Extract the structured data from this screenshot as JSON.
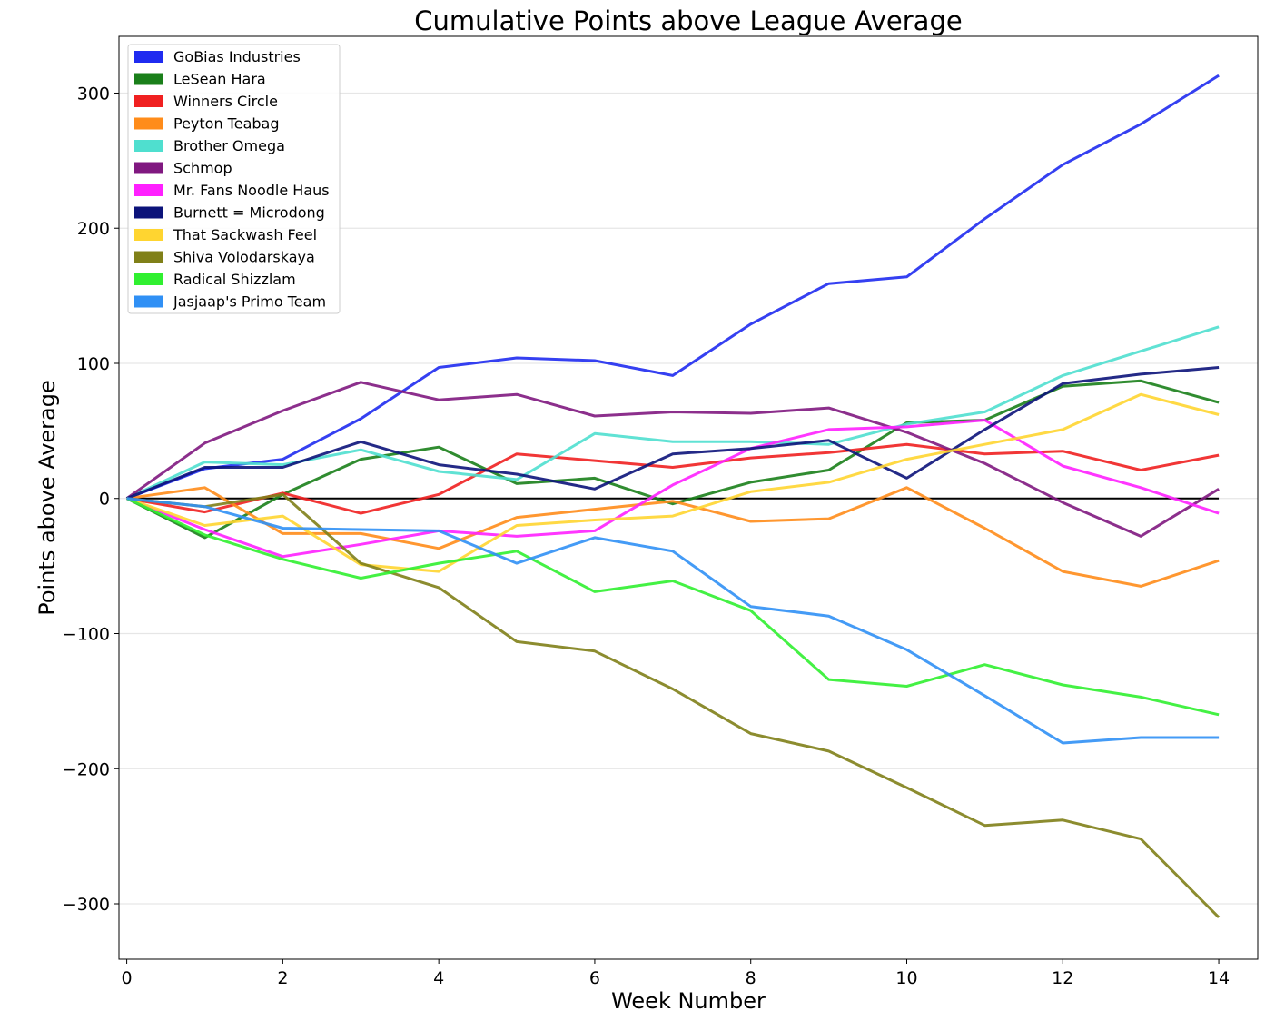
{
  "chart_data": {
    "type": "line",
    "title": "Cumulative Points above League Average",
    "xlabel": "Week Number",
    "ylabel": "Points above Average",
    "xlim": [
      -0.1,
      14.5
    ],
    "ylim": [
      -341,
      342
    ],
    "xticks": [
      0,
      2,
      4,
      6,
      8,
      10,
      12,
      14
    ],
    "yticks": [
      -300,
      -200,
      -100,
      0,
      100,
      200,
      300
    ],
    "ytick_labels": [
      "−300",
      "−200",
      "−100",
      "0",
      "100",
      "200",
      "300"
    ],
    "grid": "horizontal",
    "legend_position": "top-left",
    "x": [
      0,
      1,
      2,
      3,
      4,
      5,
      6,
      7,
      8,
      9,
      10,
      11,
      12,
      13,
      14
    ],
    "reference_line": 0,
    "series": [
      {
        "name": "GoBias Industries",
        "color": "#1f2bf0",
        "values": [
          0,
          22,
          29,
          59,
          97,
          104,
          102,
          91,
          129,
          159,
          164,
          207,
          247,
          277,
          313
        ]
      },
      {
        "name": "LeSean Hara",
        "color": "#1a7f1a",
        "values": [
          0,
          -29,
          3,
          29,
          38,
          11,
          15,
          -4,
          12,
          21,
          56,
          58,
          83,
          87,
          71
        ]
      },
      {
        "name": "Winners Circle",
        "color": "#f02020",
        "values": [
          0,
          -10,
          4,
          -11,
          3,
          33,
          28,
          23,
          30,
          34,
          40,
          33,
          35,
          21,
          32
        ]
      },
      {
        "name": "Peyton Teabag",
        "color": "#ff8c1a",
        "values": [
          0,
          8,
          -26,
          -26,
          -37,
          -14,
          -8,
          -2,
          -17,
          -15,
          8,
          -22,
          -54,
          -65,
          -46
        ]
      },
      {
        "name": "Brother Omega",
        "color": "#4fdfcf",
        "values": [
          0,
          27,
          25,
          36,
          20,
          14,
          48,
          42,
          42,
          40,
          55,
          64,
          91,
          109,
          127
        ]
      },
      {
        "name": "Schmop",
        "color": "#801880",
        "values": [
          0,
          41,
          65,
          86,
          73,
          77,
          61,
          64,
          63,
          67,
          49,
          26,
          -3,
          -28,
          7
        ]
      },
      {
        "name": "Mr. Fans Noodle Haus",
        "color": "#ff20ff",
        "values": [
          0,
          -23,
          -43,
          -34,
          -24,
          -28,
          -24,
          10,
          37,
          51,
          53,
          58,
          24,
          8,
          -11
        ]
      },
      {
        "name": "Burnett = Microdong",
        "color": "#0c137a",
        "values": [
          0,
          23,
          23,
          42,
          25,
          18,
          7,
          33,
          37,
          43,
          15,
          51,
          85,
          92,
          97
        ]
      },
      {
        "name": "That Sackwash Feel",
        "color": "#ffd530",
        "values": [
          0,
          -20,
          -13,
          -49,
          -54,
          -20,
          -16,
          -13,
          5,
          12,
          29,
          40,
          51,
          77,
          62
        ]
      },
      {
        "name": "Shiva Volodarskaya",
        "color": "#808018",
        "values": [
          0,
          -6,
          3,
          -48,
          -66,
          -106,
          -113,
          -141,
          -174,
          -187,
          -214,
          -242,
          -238,
          -252,
          -310
        ]
      },
      {
        "name": "Radical Shizzlam",
        "color": "#30f030",
        "values": [
          0,
          -27,
          -45,
          -59,
          -48,
          -39,
          -69,
          -61,
          -83,
          -134,
          -139,
          -123,
          -138,
          -147,
          -160
        ]
      },
      {
        "name": "Jasjaap's Primo Team",
        "color": "#3090f5",
        "values": [
          0,
          -6,
          -22,
          -23,
          -24,
          -48,
          -29,
          -39,
          -80,
          -87,
          -112,
          -146,
          -181,
          -177,
          -177
        ]
      }
    ]
  }
}
